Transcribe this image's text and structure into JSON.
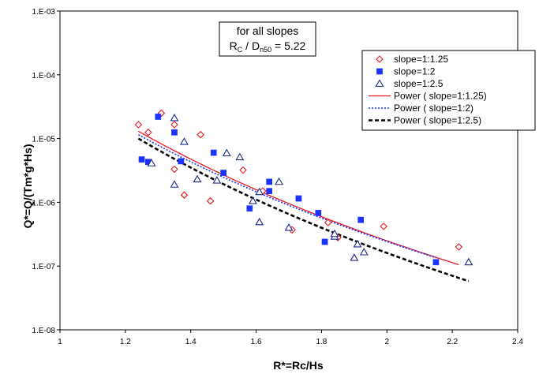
{
  "chart_data": {
    "type": "scatter",
    "title": "",
    "xlabel": "R*=Rc/Hs",
    "ylabel": "Q*=Q/(Tm*g*Hs)",
    "xlim": [
      1,
      2.4
    ],
    "ylim": [
      1e-08,
      0.001
    ],
    "yscale": "log",
    "grid": false,
    "legend_position": "top-right",
    "xticks": [
      "1",
      "1.2",
      "1.4",
      "1.6",
      "1.8",
      "2",
      "2.2",
      "2.4"
    ],
    "yticks": [
      "1.E-08",
      "1.E-07",
      "1.E-06",
      "1.E-05",
      "1.E-04",
      "1.E-03"
    ],
    "annotation": {
      "line1": "for all slopes",
      "r_main": "R",
      "r_sub": "C",
      "d_main": " / D",
      "d_sub": "n50",
      "value": " = 5.22"
    },
    "series": [
      {
        "name": "slope=1:1.25",
        "marker": "diamond",
        "color": "#e8191e",
        "points": [
          [
            1.24,
            1.65e-05
          ],
          [
            1.27,
            1.25e-05
          ],
          [
            1.31,
            2.5e-05
          ],
          [
            1.35,
            1.65e-05
          ],
          [
            1.35,
            3.3e-06
          ],
          [
            1.38,
            1.3e-06
          ],
          [
            1.43,
            1.15e-05
          ],
          [
            1.46,
            1.05e-06
          ],
          [
            1.56,
            3.2e-06
          ],
          [
            1.62,
            1.5e-06
          ],
          [
            1.71,
            3.7e-07
          ],
          [
            1.82,
            4.8e-07
          ],
          [
            1.85,
            2.8e-07
          ],
          [
            1.99,
            4.2e-07
          ],
          [
            2.22,
            2e-07
          ]
        ]
      },
      {
        "name": "slope=1:2",
        "marker": "square",
        "color": "#1a34ff",
        "points": [
          [
            1.25,
            4.7e-06
          ],
          [
            1.27,
            4.3e-06
          ],
          [
            1.3,
            2.2e-05
          ],
          [
            1.35,
            1.25e-05
          ],
          [
            1.37,
            4.4e-06
          ],
          [
            1.47,
            6e-06
          ],
          [
            1.5,
            2.9e-06
          ],
          [
            1.58,
            8e-07
          ],
          [
            1.64,
            2.1e-06
          ],
          [
            1.64,
            1.5e-06
          ],
          [
            1.73,
            1.15e-06
          ],
          [
            1.79,
            6.8e-07
          ],
          [
            1.81,
            2.4e-07
          ],
          [
            1.92,
            5.3e-07
          ],
          [
            2.15,
            1.15e-07
          ]
        ]
      },
      {
        "name": "slope=1:2.5",
        "marker": "triangle",
        "color": "#1a2a8a",
        "points": [
          [
            1.28,
            4.1e-06
          ],
          [
            1.35,
            2.1e-05
          ],
          [
            1.35,
            1.9e-06
          ],
          [
            1.38,
            8.9e-06
          ],
          [
            1.42,
            2.3e-06
          ],
          [
            1.48,
            2.2e-06
          ],
          [
            1.51,
            5.9e-06
          ],
          [
            1.55,
            5.1e-06
          ],
          [
            1.59,
            1.05e-06
          ],
          [
            1.61,
            4.9e-07
          ],
          [
            1.61,
            1.45e-06
          ],
          [
            1.67,
            2.1e-06
          ],
          [
            1.7,
            4e-07
          ],
          [
            1.84,
            2.9e-07
          ],
          [
            1.84,
            3.2e-07
          ],
          [
            1.91,
            2.2e-07
          ],
          [
            1.9,
            1.35e-07
          ],
          [
            1.93,
            1.65e-07
          ],
          [
            2.25,
            1.15e-07
          ]
        ]
      }
    ],
    "fits": [
      {
        "name": "Power ( slope=1:1.25)",
        "style": "solid",
        "color": "#e8191e",
        "x_range": [
          1.24,
          2.22
        ],
        "y_range": [
          1.3e-05,
          1.05e-07
        ]
      },
      {
        "name": "Power ( slope=1:2)",
        "style": "dotted",
        "color": "#1a34ff",
        "x_range": [
          1.24,
          2.15
        ],
        "y_range": [
          1.15e-05,
          1.35e-07
        ]
      },
      {
        "name": "Power ( slope=1:2.5)",
        "style": "dashed",
        "color": "#000000",
        "x_range": [
          1.24,
          2.25
        ],
        "y_range": [
          1e-05,
          5.8e-08
        ]
      }
    ]
  }
}
